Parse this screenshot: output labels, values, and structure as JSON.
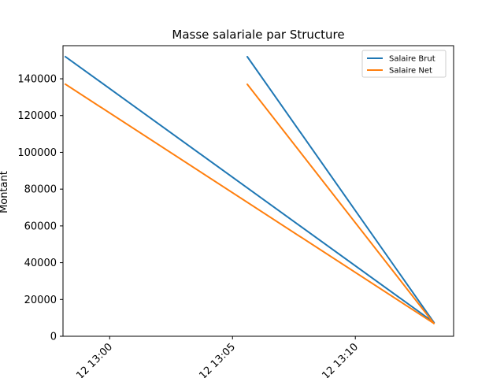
{
  "chart_data": {
    "type": "line",
    "title": "Masse salariale par Structure",
    "xlabel": "",
    "ylabel": "Montant",
    "x_ticks": [
      "12 13:00",
      "12 13:05",
      "12 13:10"
    ],
    "x_tick_minutes": [
      0,
      5,
      10
    ],
    "xlim_minutes": [
      -1.9,
      14.0
    ],
    "ylim": [
      0,
      158000
    ],
    "y_ticks": [
      0,
      20000,
      40000,
      60000,
      80000,
      100000,
      120000,
      140000
    ],
    "y_tick_labels": [
      "0",
      "20000",
      "40000",
      "60000",
      "80000",
      "100000",
      "120000",
      "140000"
    ],
    "legend_position": "upper right",
    "grid": false,
    "series": [
      {
        "name": "Salaire Brut",
        "color": "#1f77b4",
        "points": [
          [
            -1.8,
            152000
          ],
          [
            13.2,
            7500
          ],
          [
            5.6,
            152000
          ],
          [
            13.2,
            7500
          ]
        ]
      },
      {
        "name": "Salaire Net",
        "color": "#ff7f0e",
        "points": [
          [
            -1.8,
            137000
          ],
          [
            13.2,
            7000
          ],
          [
            5.6,
            137000
          ],
          [
            13.2,
            7000
          ]
        ]
      }
    ]
  }
}
